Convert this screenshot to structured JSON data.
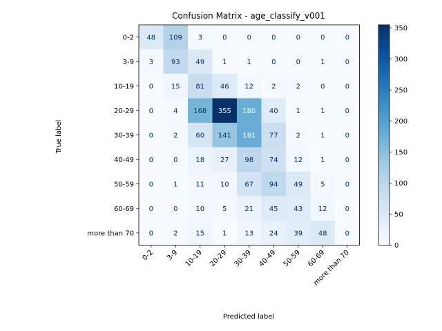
{
  "chart_data": {
    "type": "heatmap",
    "title": "Confusion Matrix - age_classify_v001",
    "xlabel": "Predicted label",
    "ylabel": "True label",
    "x_categories": [
      "0-2",
      "3-9",
      "10-19",
      "20-29",
      "30-39",
      "40-49",
      "50-59",
      "60-69",
      "more than 70"
    ],
    "y_categories": [
      "0-2",
      "3-9",
      "10-19",
      "20-29",
      "30-39",
      "40-49",
      "50-59",
      "60-69",
      "more than 70"
    ],
    "values": [
      [
        48,
        109,
        3,
        0,
        0,
        0,
        0,
        0,
        0
      ],
      [
        3,
        93,
        49,
        1,
        1,
        0,
        0,
        1,
        0
      ],
      [
        0,
        15,
        81,
        46,
        12,
        2,
        2,
        0,
        0
      ],
      [
        0,
        4,
        168,
        355,
        180,
        40,
        1,
        1,
        0
      ],
      [
        0,
        2,
        60,
        141,
        181,
        77,
        2,
        1,
        0
      ],
      [
        0,
        0,
        18,
        27,
        98,
        74,
        12,
        1,
        0
      ],
      [
        0,
        1,
        11,
        10,
        67,
        94,
        49,
        5,
        0
      ],
      [
        0,
        0,
        10,
        5,
        21,
        45,
        43,
        12,
        0
      ],
      [
        0,
        2,
        15,
        1,
        13,
        24,
        39,
        48,
        0
      ]
    ],
    "colormap": "Blues",
    "colorbar": {
      "range": [
        0,
        355
      ],
      "ticks": [
        0,
        50,
        100,
        150,
        200,
        250,
        300,
        350
      ]
    }
  }
}
